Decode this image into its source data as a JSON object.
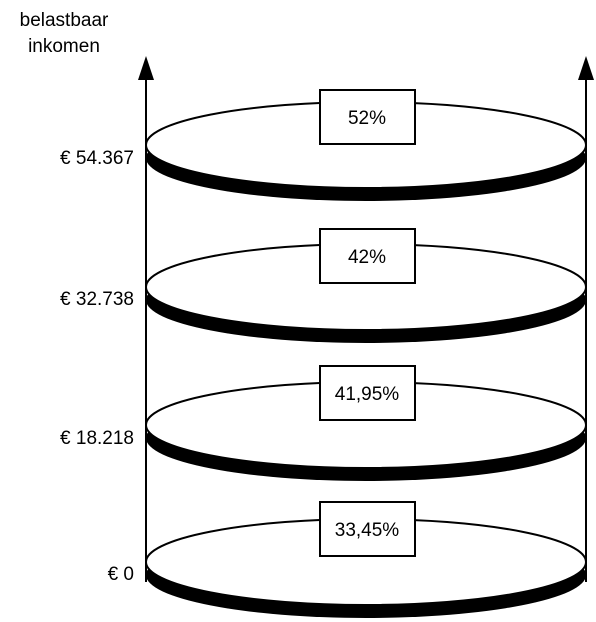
{
  "axis": {
    "label_line1": "belastbaar",
    "label_line2": "inkomen"
  },
  "brackets": [
    {
      "threshold": "€ 0",
      "rate": "33,45%"
    },
    {
      "threshold": "€ 18.218",
      "rate": "41,95%"
    },
    {
      "threshold": "€ 32.738",
      "rate": "42%"
    },
    {
      "threshold": "€ 54.367",
      "rate": "52%"
    }
  ],
  "colors": {
    "stroke": "#000000",
    "fill": "#ffffff"
  }
}
